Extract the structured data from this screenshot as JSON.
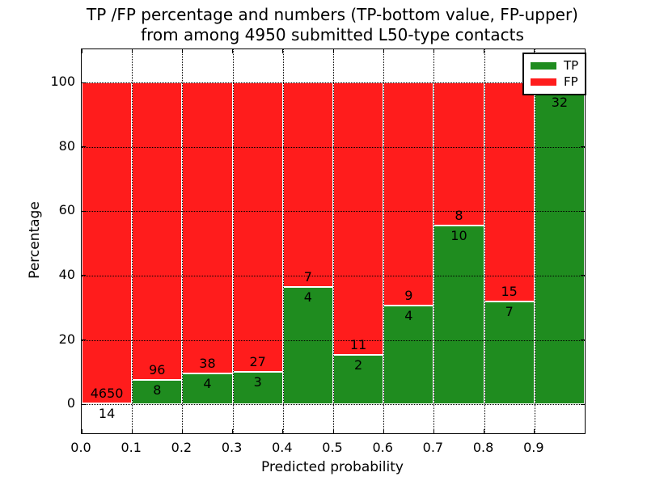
{
  "chart_data": {
    "type": "bar",
    "stacked": true,
    "title_line1": "TP /FP percentage and numbers (TP-bottom value, FP-upper)",
    "title_line2": "from among 4950 submitted L50-type contacts",
    "xlabel": "Predicted probability",
    "ylabel": "Percentage",
    "xlim": [
      0.0,
      1.0
    ],
    "ylim": [
      -9,
      110.3
    ],
    "x_ticks": [
      0.0,
      0.1,
      0.2,
      0.3,
      0.4,
      0.5,
      0.6,
      0.7,
      0.8,
      0.9
    ],
    "x_tick_labels": [
      "0.0",
      "0.1",
      "0.2",
      "0.3",
      "0.4",
      "0.5",
      "0.6",
      "0.7",
      "0.8",
      "0.9"
    ],
    "y_ticks": [
      0,
      20,
      40,
      60,
      80,
      100
    ],
    "y_tick_labels": [
      "0",
      "20",
      "40",
      "60",
      "80",
      "100"
    ],
    "grid": "dotted, both axes",
    "legend": {
      "position": "upper right",
      "entries": [
        {
          "label": "TP",
          "color": "#1f8c1f"
        },
        {
          "label": "FP",
          "color": "#ff1c1c"
        }
      ]
    },
    "colors": {
      "tp": "#1f8c1f",
      "fp": "#ff1c1c"
    },
    "bins": [
      {
        "x_start": 0.0,
        "x_end": 0.1,
        "tp": 14,
        "fp": 4650,
        "tp_pct": 0.3,
        "tp_label": "14",
        "fp_label": "4650"
      },
      {
        "x_start": 0.1,
        "x_end": 0.2,
        "tp": 8,
        "fp": 96,
        "tp_pct": 7.69,
        "tp_label": "8",
        "fp_label": "96"
      },
      {
        "x_start": 0.2,
        "x_end": 0.3,
        "tp": 4,
        "fp": 38,
        "tp_pct": 9.52,
        "tp_label": "4",
        "fp_label": "38"
      },
      {
        "x_start": 0.3,
        "x_end": 0.4,
        "tp": 3,
        "fp": 27,
        "tp_pct": 10.0,
        "tp_label": "3",
        "fp_label": "27"
      },
      {
        "x_start": 0.4,
        "x_end": 0.5,
        "tp": 4,
        "fp": 7,
        "tp_pct": 36.36,
        "tp_label": "4",
        "fp_label": "7"
      },
      {
        "x_start": 0.5,
        "x_end": 0.6,
        "tp": 2,
        "fp": 11,
        "tp_pct": 15.38,
        "tp_label": "2",
        "fp_label": "11"
      },
      {
        "x_start": 0.6,
        "x_end": 0.7,
        "tp": 4,
        "fp": 9,
        "tp_pct": 30.77,
        "tp_label": "4",
        "fp_label": "9"
      },
      {
        "x_start": 0.7,
        "x_end": 0.8,
        "tp": 10,
        "fp": 8,
        "tp_pct": 55.56,
        "tp_label": "10",
        "fp_label": "8"
      },
      {
        "x_start": 0.8,
        "x_end": 0.9,
        "tp": 7,
        "fp": 15,
        "tp_pct": 31.82,
        "tp_label": "7",
        "fp_label": "15"
      },
      {
        "x_start": 0.9,
        "x_end": 1.0,
        "tp": 32,
        "fp": 1,
        "tp_pct": 96.97,
        "tp_label": "32",
        "fp_label": ""
      }
    ]
  }
}
